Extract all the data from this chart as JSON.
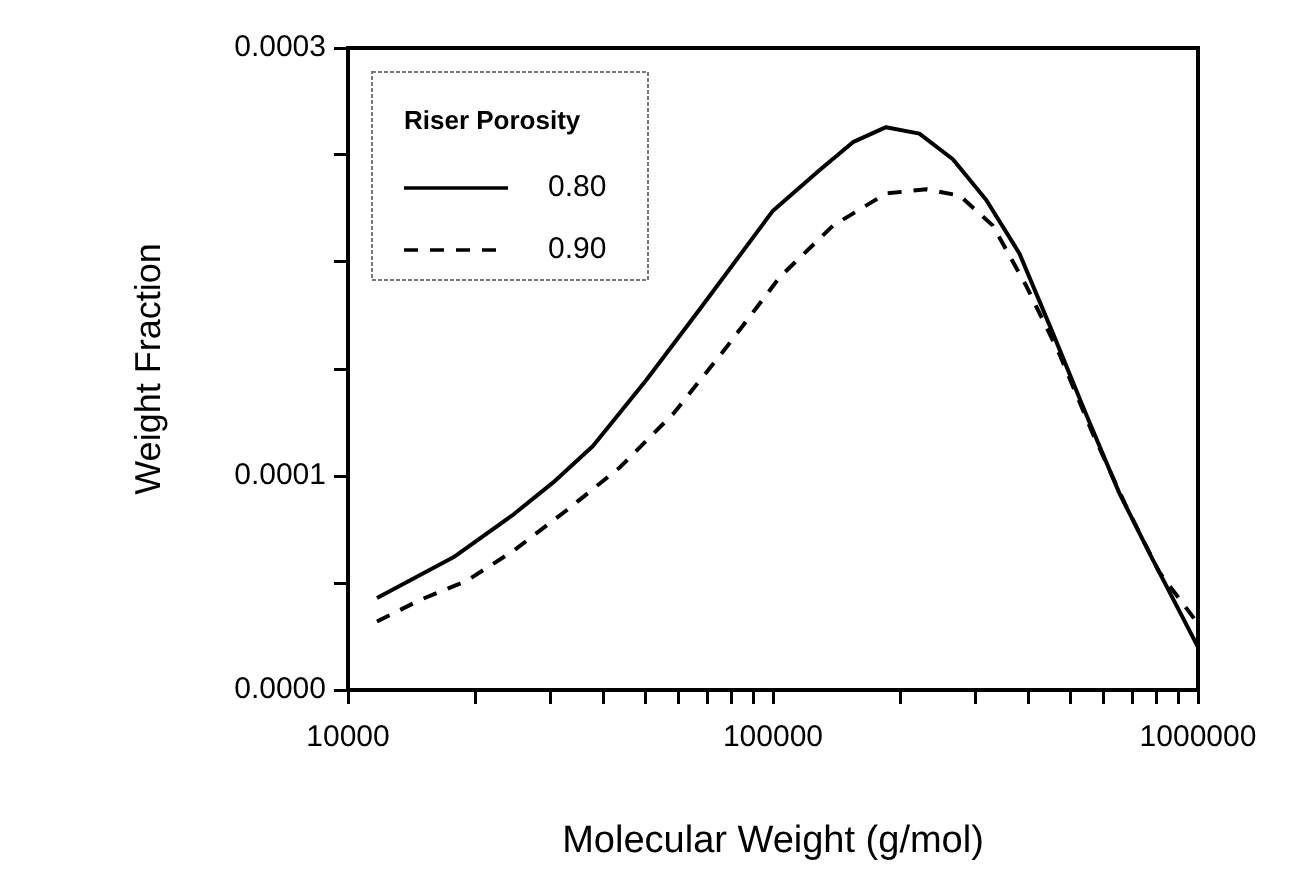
{
  "chart_data": {
    "type": "line",
    "xlabel": "Molecular Weight (g/mol)",
    "ylabel": "Weight Fraction",
    "legend_title": "Riser Porosity",
    "legend": "top left",
    "log": "x",
    "grid": false,
    "marker": "none",
    "xlim": [
      10000,
      1000000
    ],
    "xticks": [
      10000,
      {
        "value": 20000,
        "label": null
      },
      {
        "value": 30000,
        "label": null
      },
      {
        "value": 40000,
        "label": null
      },
      {
        "value": 50000,
        "label": null
      },
      {
        "value": 60000,
        "label": null
      },
      {
        "value": 70000,
        "label": null
      },
      {
        "value": 80000,
        "label": null
      },
      {
        "value": 90000,
        "label": null
      },
      100000,
      {
        "value": 200000,
        "label": null
      },
      {
        "value": 300000,
        "label": null
      },
      {
        "value": 400000,
        "label": null
      },
      {
        "value": 500000,
        "label": null
      },
      {
        "value": 600000,
        "label": null
      },
      {
        "value": 700000,
        "label": null
      },
      {
        "value": 800000,
        "label": null
      },
      {
        "value": 900000,
        "label": null
      },
      1000000
    ],
    "ylim": [
      0,
      0.0003
    ],
    "yticks": [
      {
        "value": 0,
        "label": "0.0000"
      },
      {
        "value": 5e-05,
        "label": null
      },
      {
        "value": 0.0001,
        "label": "0.0001"
      },
      {
        "value": 0.00015,
        "label": null
      },
      {
        "value": 0.0002,
        "label": null
      },
      {
        "value": 0.00025,
        "label": null
      },
      {
        "value": 0.0003,
        "label": "0.0003"
      }
    ],
    "series": [
      {
        "name": "0.80",
        "color": "#000000",
        "line_style": "solid",
        "x": [
          11700,
          17700,
          24500,
          30400,
          37700,
          50400,
          67300,
          100000,
          128800,
          154200,
          184500,
          221000,
          265000,
          317500,
          380000,
          455000,
          545000,
          653000,
          782000,
          1000000
        ],
        "values": [
          4.3e-05,
          6.2e-05,
          8.2e-05,
          9.7e-05,
          0.000114,
          0.000145,
          0.000178,
          0.000224,
          0.000243,
          0.000256,
          0.000263,
          0.00026,
          0.000248,
          0.000229,
          0.000204,
          0.000167,
          0.000129,
          9.2e-05,
          6.1e-05,
          2e-05
        ]
      },
      {
        "name": "0.90",
        "color": "#000000",
        "line_style": "dashed",
        "x": [
          11700,
          14750,
          19000,
          24500,
          32700,
          43600,
          58200,
          77600,
          103800,
          138400,
          184500,
          229600,
          275000,
          329000,
          394000,
          472000,
          565000,
          677000,
          811000,
          1000000
        ],
        "values": [
          3.2e-05,
          4.2e-05,
          5.1e-05,
          6.5e-05,
          8.4e-05,
          0.000104,
          0.000129,
          0.00016,
          0.000193,
          0.000217,
          0.000232,
          0.000234,
          0.000231,
          0.000217,
          0.000189,
          0.000157,
          0.00012,
          8.6e-05,
          5.5e-05,
          3.1e-05
        ]
      }
    ]
  }
}
